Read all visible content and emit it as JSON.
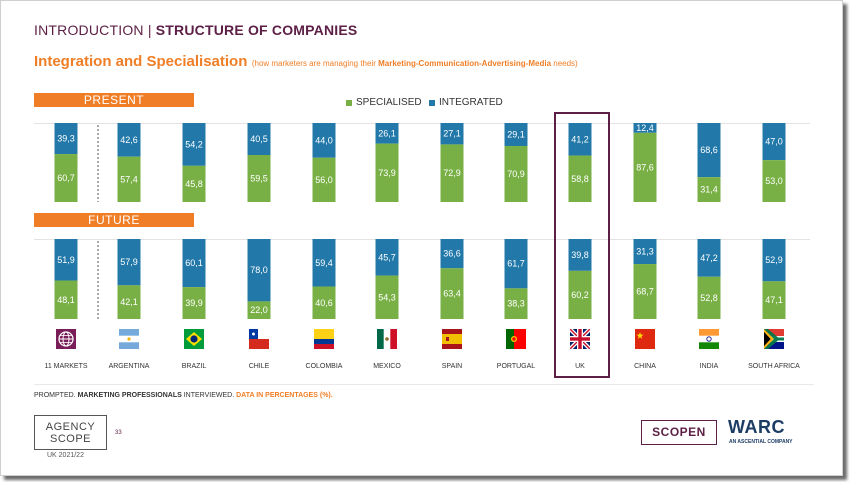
{
  "header": {
    "part1": "INTRODUCTION | ",
    "part2": "STRUCTURE OF COMPANIES"
  },
  "subtitle": {
    "main": "Integration and Specialisation",
    "note_pre": "(how marketers are managing their ",
    "note_bold": "Marketing-Communication-Advertising-Media",
    "note_post": " needs)"
  },
  "sections": {
    "present": "PRESENT",
    "future": "FUTURE"
  },
  "legend": {
    "specialised": "SPECIALISED",
    "integrated": "INTEGRATED"
  },
  "colors": {
    "specialised": "#79b046",
    "integrated": "#2178a9",
    "accent": "#f07e26",
    "brand": "#5c1f45"
  },
  "chart_data": {
    "type": "bar",
    "stacked": true,
    "ylim": [
      0,
      100
    ],
    "categories": [
      "11 MARKETS",
      "ARGENTINA",
      "BRAZIL",
      "CHILE",
      "COLOMBIA",
      "MEXICO",
      "SPAIN",
      "PORTUGAL",
      "UK",
      "CHINA",
      "INDIA",
      "SOUTH AFRICA"
    ],
    "panels": [
      {
        "name": "PRESENT",
        "series": [
          {
            "name": "INTEGRATED",
            "values": [
              39.3,
              42.6,
              54.2,
              40.5,
              44.0,
              26.1,
              27.1,
              29.1,
              41.2,
              12.4,
              68.6,
              47.0
            ]
          },
          {
            "name": "SPECIALISED",
            "values": [
              60.7,
              57.4,
              45.8,
              59.5,
              56.0,
              73.9,
              72.9,
              70.9,
              58.8,
              87.6,
              31.4,
              53.0
            ]
          }
        ],
        "labels_integrated": [
          "39,3",
          "42,6",
          "54,2",
          "40,5",
          "44,0",
          "26,1",
          "27,1",
          "29,1",
          "41,2",
          "12,4",
          "68,6",
          "47,0"
        ],
        "labels_specialised": [
          "60,7",
          "57,4",
          "45,8",
          "59,5",
          "56,0",
          "73,9",
          "72,9",
          "70,9",
          "58,8",
          "87,6",
          "31,4",
          "53,0"
        ]
      },
      {
        "name": "FUTURE",
        "series": [
          {
            "name": "INTEGRATED",
            "values": [
              51.9,
              57.9,
              60.1,
              78.0,
              59.4,
              45.7,
              36.6,
              61.7,
              39.8,
              31.3,
              47.2,
              52.9
            ]
          },
          {
            "name": "SPECIALISED",
            "values": [
              48.1,
              42.1,
              39.9,
              22.0,
              40.6,
              54.3,
              63.4,
              38.3,
              60.2,
              68.7,
              52.8,
              47.1
            ]
          }
        ],
        "labels_integrated": [
          "51,9",
          "57,9",
          "60,1",
          "78,0",
          "59,4",
          "45,7",
          "36,6",
          "61,7",
          "39,8",
          "31,3",
          "47,2",
          "52,9"
        ],
        "labels_specialised": [
          "48,1",
          "42,1",
          "39,9",
          "22,0",
          "40,6",
          "54,3",
          "63,4",
          "38,3",
          "60,2",
          "68,7",
          "52,8",
          "47,1"
        ]
      }
    ],
    "highlight": "UK"
  },
  "flags": [
    "globe-icon",
    "argentina-flag-icon",
    "brazil-flag-icon",
    "chile-flag-icon",
    "colombia-flag-icon",
    "mexico-flag-icon",
    "spain-flag-icon",
    "portugal-flag-icon",
    "uk-flag-icon",
    "china-flag-icon",
    "india-flag-icon",
    "south-africa-flag-icon"
  ],
  "footer": {
    "note_pre": "PROMPTED. ",
    "note_bold": "MARKETING PROFESSIONALS",
    "note_mid": " INTERVIEWED. ",
    "note_orange": "DATA IN PERCENTAGES (%).",
    "agency_line1": "AGENCY",
    "agency_line2": "SCOPE",
    "page": "33",
    "edition": "UK 2021/22",
    "scopen": "SCOPEN",
    "warc": "WARC",
    "warc_tag": "AN ASCENTIAL COMPANY"
  }
}
